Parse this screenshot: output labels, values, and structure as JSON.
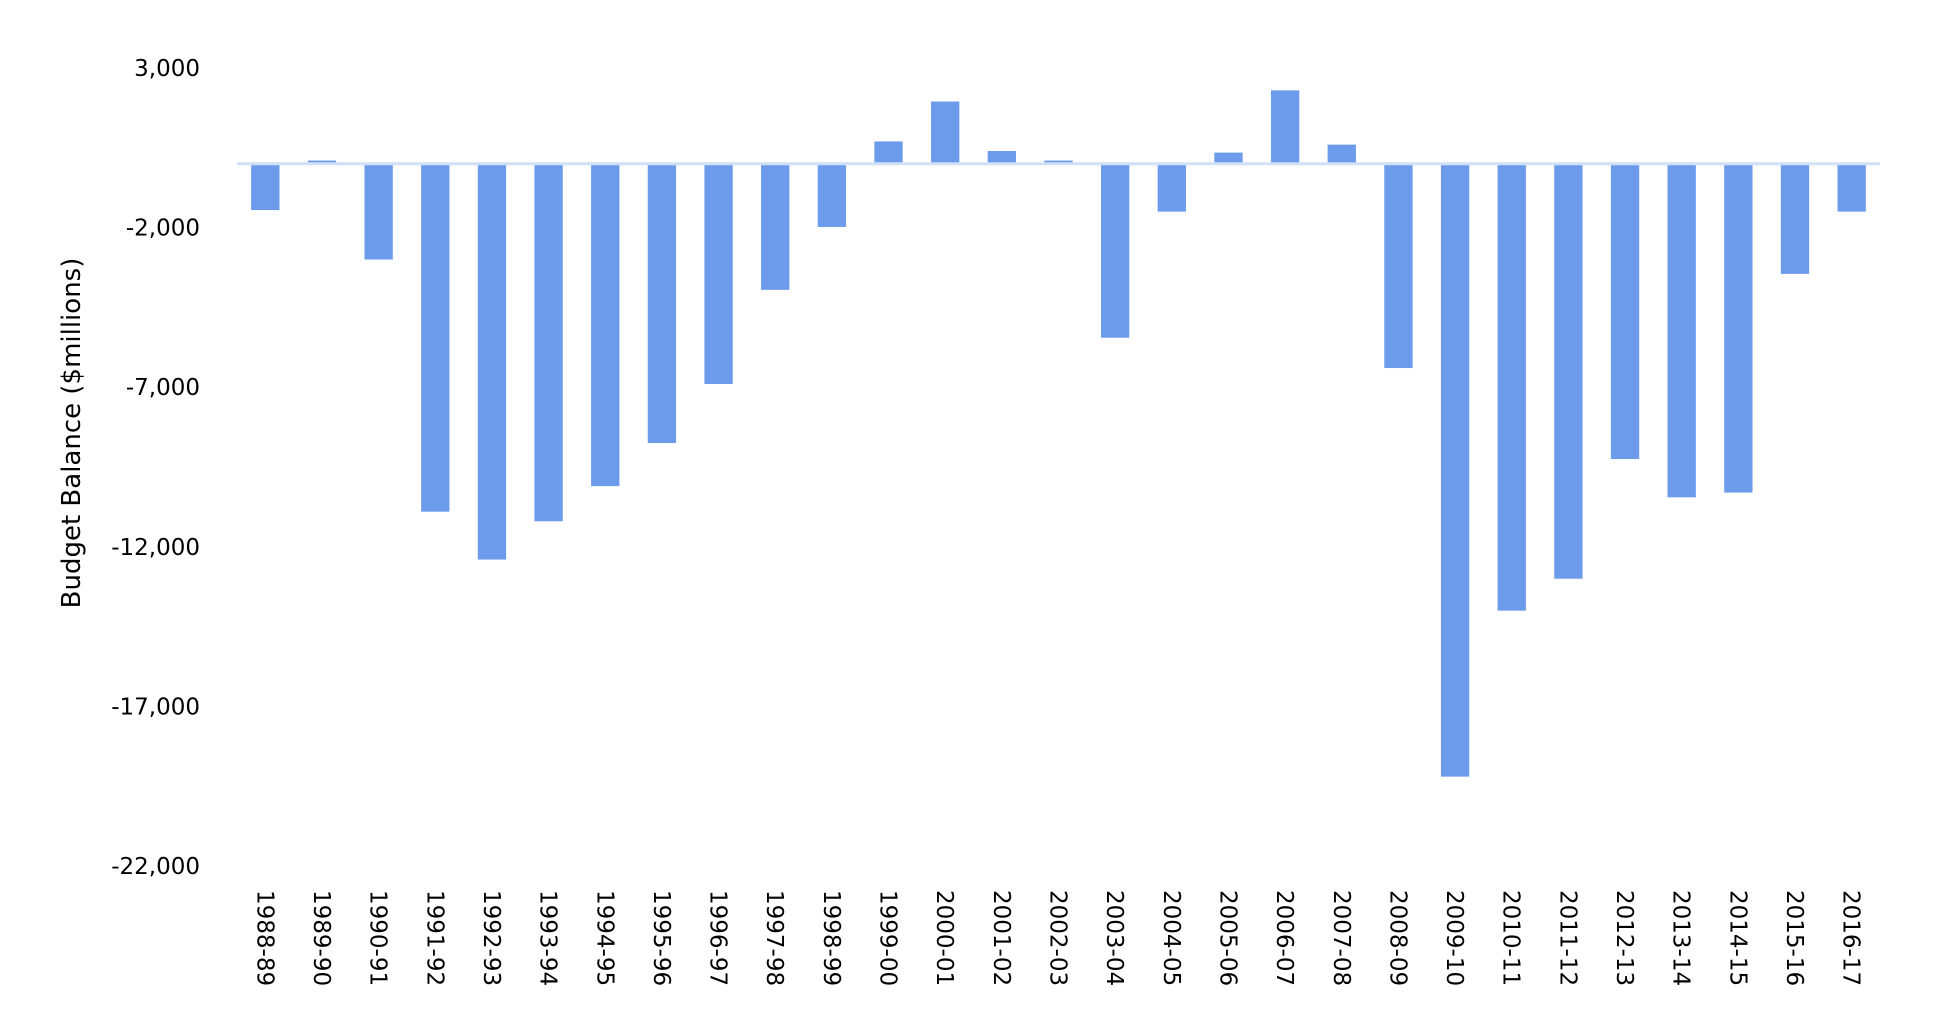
{
  "chart_data": {
    "type": "bar",
    "title": "",
    "xlabel": "",
    "ylabel": "Budget Balance ($millions)",
    "ylim": [
      -22000,
      3000
    ],
    "yticks": [
      3000,
      -2000,
      -7000,
      -12000,
      -17000,
      -22000
    ],
    "ytick_labels": [
      "3,000",
      "-2,000",
      "-7,000",
      "-12,000",
      "-17,000",
      "-22,000"
    ],
    "grid": false,
    "legend": "none",
    "bar_color": "#6d9beb",
    "axis_color": "#cfe0f7",
    "categories": [
      "1988-89",
      "1989-90",
      "1990-91",
      "1991-92",
      "1992-93",
      "1993-94",
      "1994-95",
      "1995-96",
      "1996-97",
      "1997-98",
      "1998-99",
      "1999-00",
      "2000-01",
      "2001-02",
      "2002-03",
      "2003-04",
      "2004-05",
      "2005-06",
      "2006-07",
      "2007-08",
      "2008-09",
      "2009-10",
      "2010-11",
      "2011-12",
      "2012-13",
      "2013-14",
      "2014-15",
      "2015-16",
      "2016-17"
    ],
    "values": [
      -1450,
      100,
      -3000,
      -10900,
      -12400,
      -11200,
      -10100,
      -8750,
      -6900,
      -3950,
      -1980,
      700,
      1950,
      400,
      100,
      -5450,
      -1500,
      350,
      2300,
      600,
      -6400,
      -19200,
      -14000,
      -13000,
      -9250,
      -10450,
      -10300,
      -3450,
      -1500
    ]
  }
}
